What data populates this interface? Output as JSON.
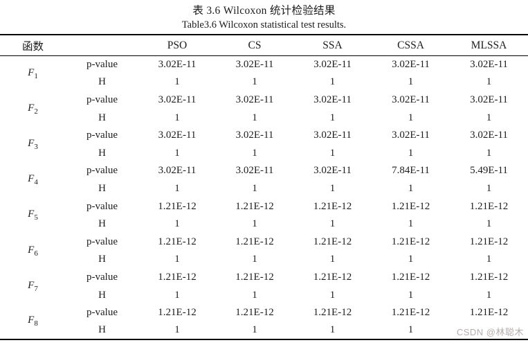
{
  "title_cn": "表 3.6 Wilcoxon 统计检验结果",
  "title_en": "Table3.6 Wilcoxon statistical test results.",
  "watermark": "CSDN @林聪木",
  "table": {
    "header": {
      "func": "函数",
      "metric": "",
      "algorithms": [
        "PSO",
        "CS",
        "SSA",
        "CSSA",
        "MLSSA"
      ]
    },
    "metric_labels": [
      "p-value",
      "H"
    ],
    "rows": [
      {
        "func": "F",
        "sub": "1",
        "p": [
          "3.02E-11",
          "3.02E-11",
          "3.02E-11",
          "3.02E-11",
          "3.02E-11"
        ],
        "h": [
          "1",
          "1",
          "1",
          "1",
          "1"
        ]
      },
      {
        "func": "F",
        "sub": "2",
        "p": [
          "3.02E-11",
          "3.02E-11",
          "3.02E-11",
          "3.02E-11",
          "3.02E-11"
        ],
        "h": [
          "1",
          "1",
          "1",
          "1",
          "1"
        ]
      },
      {
        "func": "F",
        "sub": "3",
        "p": [
          "3.02E-11",
          "3.02E-11",
          "3.02E-11",
          "3.02E-11",
          "3.02E-11"
        ],
        "h": [
          "1",
          "1",
          "1",
          "1",
          "1"
        ]
      },
      {
        "func": "F",
        "sub": "4",
        "p": [
          "3.02E-11",
          "3.02E-11",
          "3.02E-11",
          "7.84E-11",
          "5.49E-11"
        ],
        "h": [
          "1",
          "1",
          "1",
          "1",
          "1"
        ]
      },
      {
        "func": "F",
        "sub": "5",
        "p": [
          "1.21E-12",
          "1.21E-12",
          "1.21E-12",
          "1.21E-12",
          "1.21E-12"
        ],
        "h": [
          "1",
          "1",
          "1",
          "1",
          "1"
        ]
      },
      {
        "func": "F",
        "sub": "6",
        "p": [
          "1.21E-12",
          "1.21E-12",
          "1.21E-12",
          "1.21E-12",
          "1.21E-12"
        ],
        "h": [
          "1",
          "1",
          "1",
          "1",
          "1"
        ]
      },
      {
        "func": "F",
        "sub": "7",
        "p": [
          "1.21E-12",
          "1.21E-12",
          "1.21E-12",
          "1.21E-12",
          "1.21E-12"
        ],
        "h": [
          "1",
          "1",
          "1",
          "1",
          "1"
        ]
      },
      {
        "func": "F",
        "sub": "8",
        "p": [
          "1.21E-12",
          "1.21E-12",
          "1.21E-12",
          "1.21E-12",
          "1.21E-12"
        ],
        "h": [
          "1",
          "1",
          "1",
          "1",
          "1"
        ]
      }
    ]
  }
}
